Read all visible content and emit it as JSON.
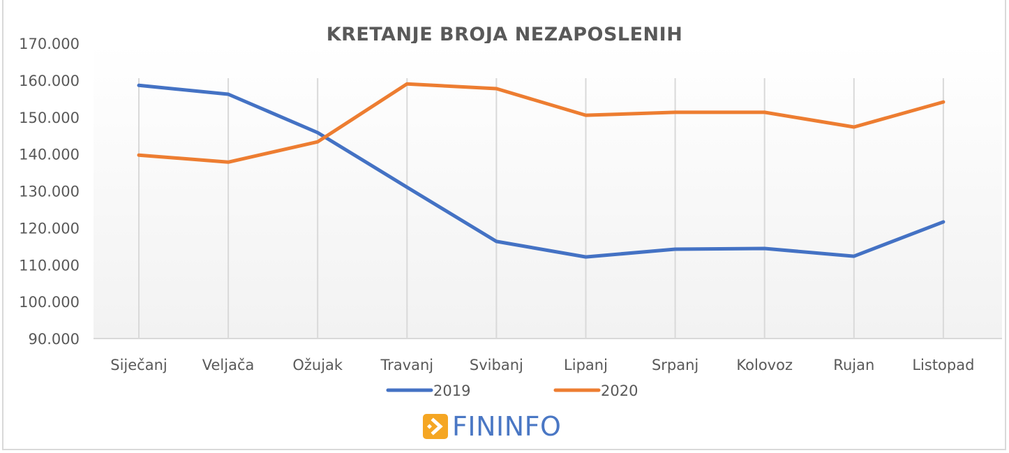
{
  "chart_data": {
    "type": "line",
    "title": "KRETANJE BROJA NEZAPOSLENIH",
    "xlabel": "",
    "ylabel": "",
    "categories": [
      "Siječanj",
      "Veljača",
      "Ožujak",
      "Travanj",
      "Svibanj",
      "Lipanj",
      "Srpanj",
      "Kolovoz",
      "Rujan",
      "Listopad"
    ],
    "series": [
      {
        "name": "2019",
        "color": "#4472c4",
        "values": [
          158600,
          156200,
          145800,
          131000,
          116300,
          112100,
          114200,
          114400,
          112300,
          121600
        ]
      },
      {
        "name": "2020",
        "color": "#ed7d31",
        "values": [
          139700,
          137800,
          143300,
          159000,
          157700,
          150500,
          151300,
          151300,
          147300,
          154100
        ]
      }
    ],
    "ylim": [
      90000,
      170000
    ],
    "yticks": [
      90000,
      100000,
      110000,
      120000,
      130000,
      140000,
      150000,
      160000,
      170000
    ],
    "ytick_labels": [
      "90.000",
      "100.000",
      "110.000",
      "120.000",
      "130.000",
      "140.000",
      "150.000",
      "160.000",
      "170.000"
    ],
    "grid": {
      "vertical": true,
      "horizontal": false
    },
    "legend_position": "bottom"
  },
  "legend": [
    {
      "label": "2019",
      "color": "#4472c4"
    },
    {
      "label": "2020",
      "color": "#ed7d31"
    }
  ],
  "branding": {
    "logo_text": "FININFO",
    "logo_icon": "arrow-right-icon",
    "logo_color": "#f5a623",
    "text_color": "#4a77c4"
  }
}
